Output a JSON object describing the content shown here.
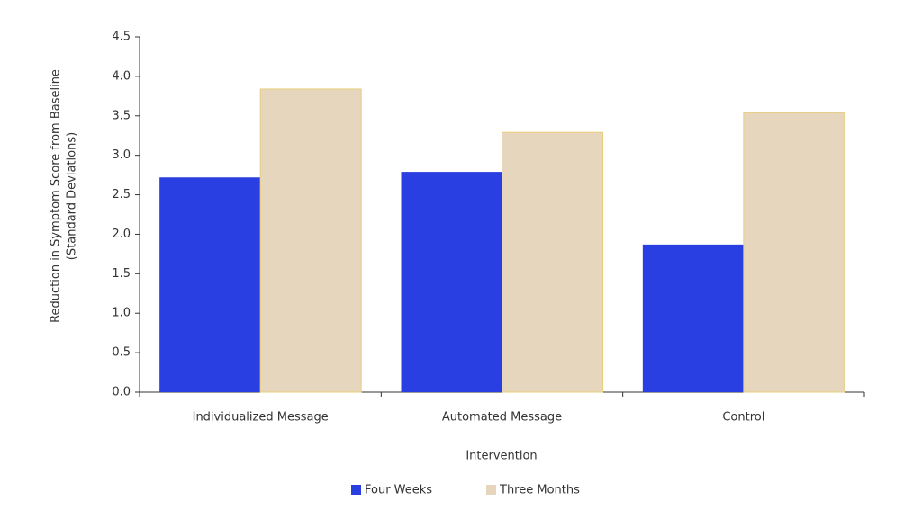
{
  "chart_data": {
    "type": "bar",
    "x_label": "Intervention",
    "y_label": [
      "Reduction in Symptom Score from Baseline",
      "(Standard Deviations)"
    ],
    "categories": [
      "Individualized Message",
      "Automated Message",
      "Control"
    ],
    "series": [
      {
        "name": "Four Weeks",
        "color": "#2a3fe2",
        "values": [
          2.72,
          2.79,
          1.87
        ]
      },
      {
        "name": "Three Months",
        "color": "#e6d6be",
        "values": [
          3.84,
          3.29,
          3.54
        ]
      }
    ],
    "ylim": [
      0,
      4.5
    ],
    "yticks": [
      {
        "value": 0,
        "label": "0.0"
      },
      0.5,
      {
        "value": 1,
        "label": "1.0"
      },
      1.5,
      {
        "value": 2,
        "label": "2.0"
      },
      2.5,
      {
        "value": 3,
        "label": "3.0"
      },
      3.5,
      {
        "value": 4,
        "label": "4.0"
      },
      4.5
    ],
    "legend": "bottom"
  }
}
